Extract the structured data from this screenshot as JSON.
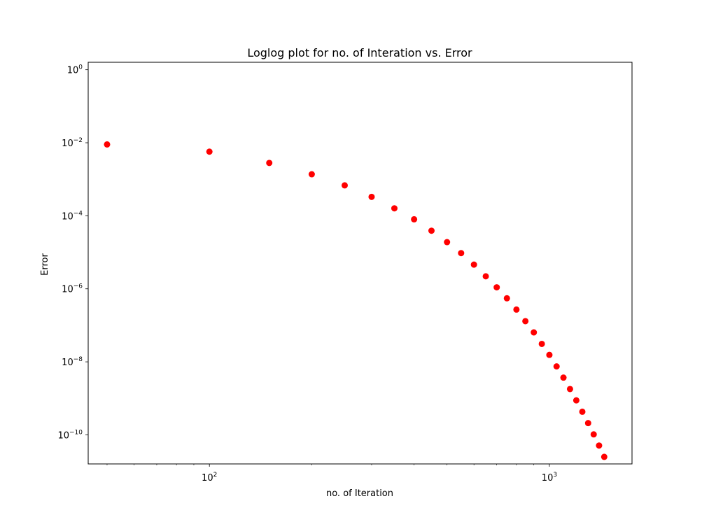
{
  "chart_data": {
    "type": "scatter",
    "title": "Loglog plot for no. of Interation vs. Error",
    "xlabel": "no. of Iteration",
    "ylabel": "Error",
    "xscale": "log",
    "yscale": "log",
    "xlim": [
      44,
      1750
    ],
    "ylim": [
      1.6e-11,
      1.6
    ],
    "grid": false,
    "marker_color": "#ff0000",
    "x_ticks": [
      {
        "value": 100,
        "base": "10",
        "exp": "2"
      },
      {
        "value": 1000,
        "base": "10",
        "exp": "3"
      }
    ],
    "y_ticks": [
      {
        "value": 1,
        "base": "10",
        "exp": "0"
      },
      {
        "value": 0.01,
        "base": "10",
        "exp": "−2"
      },
      {
        "value": 0.0001,
        "base": "10",
        "exp": "−4"
      },
      {
        "value": 1e-06,
        "base": "10",
        "exp": "−6"
      },
      {
        "value": 1e-08,
        "base": "10",
        "exp": "−8"
      },
      {
        "value": 1e-10,
        "base": "10",
        "exp": "−10"
      }
    ],
    "series": [
      {
        "x": [
          50,
          100,
          150,
          200,
          250,
          300,
          350,
          400,
          450,
          500,
          550,
          600,
          650,
          700,
          750,
          800,
          850,
          900,
          950,
          1000,
          1050,
          1100,
          1150,
          1200,
          1250,
          1300,
          1350,
          1400,
          1450
        ],
        "y": [
          0.009,
          0.0057,
          0.0028,
          0.00137,
          0.00068,
          0.00033,
          0.00016,
          8e-05,
          3.9e-05,
          1.9e-05,
          9.5e-06,
          4.6e-06,
          2.2e-06,
          1.1e-06,
          5.5e-07,
          2.7e-07,
          1.3e-07,
          6.4e-08,
          3.1e-08,
          1.55e-08,
          7.5e-09,
          3.7e-09,
          1.8e-09,
          8.8e-10,
          4.3e-10,
          2.1e-10,
          1.03e-10,
          5.1e-11,
          2.5e-11
        ]
      }
    ]
  }
}
